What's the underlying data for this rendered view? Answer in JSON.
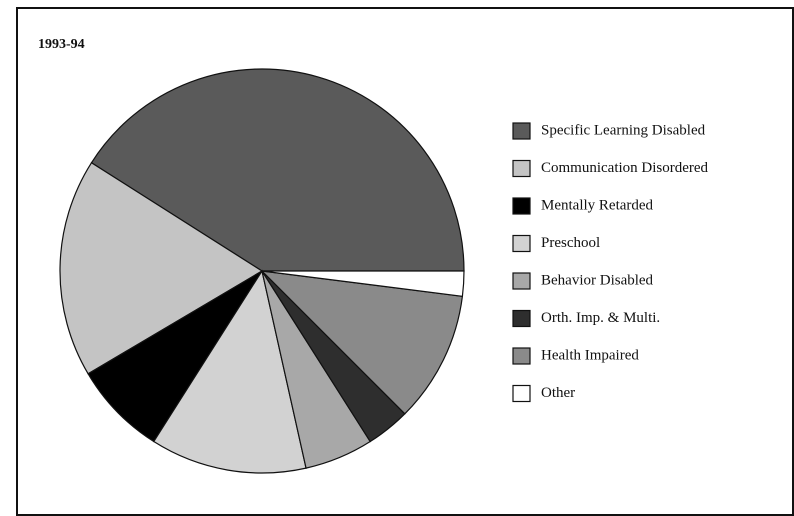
{
  "chart_data": {
    "type": "pie",
    "title": "1993-94",
    "categories": [
      "Specific Learning Disabled",
      "Communication Disordered",
      "Mentally Retarded",
      "Preschool",
      "Behavior Disabled",
      "Orth. Imp. & Multi.",
      "Health Impaired",
      "Other"
    ],
    "values": [
      41,
      17.5,
      7.5,
      12.5,
      5.5,
      3.5,
      10.5,
      2
    ],
    "colors": [
      "#5a5a5a",
      "#c4c4c4",
      "#000000",
      "#d2d2d2",
      "#a8a8a8",
      "#2e2e2e",
      "#8a8a8a",
      "#ffffff"
    ],
    "legend": "right"
  }
}
